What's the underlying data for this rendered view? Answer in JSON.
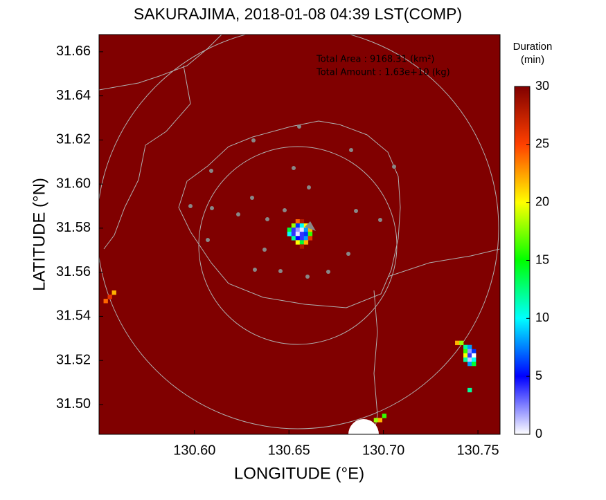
{
  "chart_data": {
    "type": "raster-map",
    "title": "SAKURAJIMA, 2018-01-08 04:39 LST(COMP)",
    "x_label": "LONGITUDE (°E)",
    "y_label": "LATITUDE (°N)",
    "annotations": [
      "Total Area   : 9168.31 (km²)",
      "Total Amount : 1.63e+10 (kg)"
    ],
    "xlim": [
      130.5495,
      130.7617
    ],
    "xticks": [
      {
        "value": 130.6,
        "label": "130.60"
      },
      130.65,
      {
        "value": 130.7,
        "label": "130.70"
      },
      130.75
    ],
    "ylim": [
      31.4865,
      31.6678
    ],
    "yticks": [
      {
        "value": 31.5,
        "label": "31.50"
      },
      31.52,
      31.54,
      31.56,
      31.58,
      {
        "value": 31.6,
        "label": "31.60"
      },
      31.62,
      31.64,
      31.66
    ],
    "colorbar": {
      "title": [
        "Duration",
        "(min)"
      ],
      "lim": [
        0,
        30
      ],
      "ticks": [
        0,
        5,
        10,
        15,
        20,
        25,
        30
      ],
      "colors": [
        "#ffffff",
        "#0000ff",
        "#00ffff",
        "#00ff00",
        "#ffff00",
        "#ff4000",
        "#800000"
      ]
    },
    "cells": {
      "lon": [
        130.6546,
        130.6568,
        130.6524,
        130.6546,
        130.6568,
        130.659,
        130.6502,
        130.6524,
        130.6546,
        130.6568,
        130.659,
        130.6612,
        130.6502,
        130.6524,
        130.6546,
        130.6568,
        130.659,
        130.6612,
        130.6524,
        130.6546,
        130.6568,
        130.659,
        130.6612,
        130.6546,
        130.6568,
        130.659,
        130.6568,
        130.739,
        130.7412,
        130.7434,
        130.7456,
        130.7434,
        130.7456,
        130.7478,
        130.7434,
        130.7456,
        130.7478,
        130.7434,
        130.7456,
        130.7478,
        130.7456,
        130.7478,
        130.7456,
        130.696,
        130.6982,
        130.7004,
        130.553,
        130.5552,
        130.5574
      ],
      "lat": [
        31.5831,
        31.5831,
        31.5812,
        31.5812,
        31.5812,
        31.5812,
        31.5793,
        31.5793,
        31.5793,
        31.5793,
        31.5793,
        31.5793,
        31.5774,
        31.5774,
        31.5774,
        31.5774,
        31.5774,
        31.5774,
        31.5755,
        31.5755,
        31.5755,
        31.5755,
        31.5755,
        31.5736,
        31.5736,
        31.5736,
        31.5717,
        31.528,
        31.528,
        31.5261,
        31.5261,
        31.5242,
        31.5242,
        31.5242,
        31.5223,
        31.5223,
        31.5223,
        31.5204,
        31.5204,
        31.5204,
        31.5185,
        31.5185,
        31.5066,
        31.493,
        31.493,
        31.4949,
        31.547,
        31.5489,
        31.5508
      ],
      "values": [
        24,
        28,
        18,
        6,
        10,
        20,
        14,
        4,
        2,
        0.5,
        8,
        22,
        10,
        4,
        0.5,
        4,
        6,
        16,
        12,
        5,
        4,
        8,
        26,
        20,
        14,
        22,
        28,
        22,
        18,
        12,
        8,
        16,
        2,
        6,
        20,
        4,
        0,
        12,
        1,
        10,
        8,
        14,
        12,
        18,
        22,
        16,
        24,
        26,
        22
      ]
    }
  }
}
